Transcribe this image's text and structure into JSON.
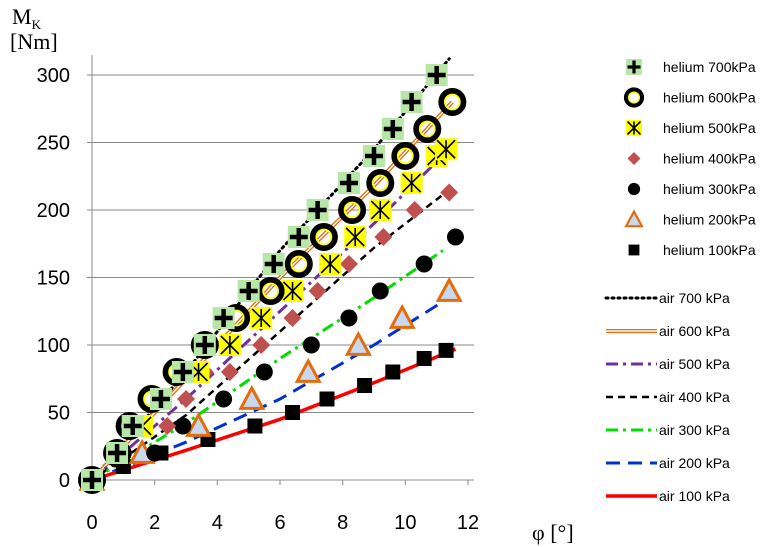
{
  "chart_data": {
    "type": "scatter",
    "y_label_main": "M",
    "y_label_sub": "K",
    "y_label_unit": "[Nm]",
    "x_label": "φ [°]",
    "x_ticks": [
      0,
      2,
      4,
      6,
      8,
      10,
      12
    ],
    "y_ticks": [
      0,
      50,
      100,
      150,
      200,
      250,
      300
    ],
    "xlim": [
      0,
      12
    ],
    "ylim": [
      0,
      320
    ],
    "grid": "horizontal",
    "legend_placement": "right",
    "series": [
      {
        "name": "helium 700kPa",
        "kind": "marker",
        "marker": "plus",
        "color": "#000000",
        "bg": "#b7e7a7",
        "points": [
          [
            0,
            0
          ],
          [
            0.8,
            20
          ],
          [
            1.3,
            40
          ],
          [
            2.2,
            60
          ],
          [
            2.9,
            80
          ],
          [
            3.6,
            100
          ],
          [
            4.2,
            120
          ],
          [
            5.0,
            140
          ],
          [
            5.8,
            160
          ],
          [
            6.6,
            180
          ],
          [
            7.2,
            200
          ],
          [
            8.2,
            220
          ],
          [
            9.0,
            240
          ],
          [
            9.6,
            260
          ],
          [
            10.2,
            280
          ],
          [
            11.0,
            300
          ]
        ]
      },
      {
        "name": "helium 600kPa",
        "kind": "marker",
        "marker": "ring",
        "color": "#000000",
        "fill": "#ffff00",
        "points": [
          [
            0,
            0
          ],
          [
            0.8,
            20
          ],
          [
            1.2,
            40
          ],
          [
            1.9,
            60
          ],
          [
            2.7,
            80
          ],
          [
            3.6,
            100
          ],
          [
            4.6,
            120
          ],
          [
            5.7,
            140
          ],
          [
            6.6,
            160
          ],
          [
            7.4,
            180
          ],
          [
            8.3,
            200
          ],
          [
            9.2,
            220
          ],
          [
            10.0,
            240
          ],
          [
            10.7,
            260
          ],
          [
            11.5,
            280
          ]
        ]
      },
      {
        "name": "helium 500kPa",
        "kind": "marker",
        "marker": "asterisk-box",
        "color": "#000000",
        "fill": "#ffff00",
        "points": [
          [
            1.6,
            40
          ],
          [
            3.4,
            80
          ],
          [
            4.4,
            100
          ],
          [
            5.4,
            120
          ],
          [
            6.4,
            140
          ],
          [
            7.6,
            160
          ],
          [
            8.4,
            180
          ],
          [
            9.2,
            200
          ],
          [
            10.2,
            220
          ],
          [
            11.0,
            240
          ],
          [
            11.3,
            245
          ]
        ]
      },
      {
        "name": "helium 400kPa",
        "kind": "marker",
        "marker": "diamond",
        "color": "#c0504d",
        "points": [
          [
            2.4,
            40
          ],
          [
            3.0,
            60
          ],
          [
            3.6,
            80
          ],
          [
            4.4,
            80
          ],
          [
            5.4,
            100
          ],
          [
            6.4,
            120
          ],
          [
            7.2,
            140
          ],
          [
            8.2,
            160
          ],
          [
            9.3,
            180
          ],
          [
            10.3,
            200
          ],
          [
            11.4,
            213
          ]
        ]
      },
      {
        "name": "helium 300kPa",
        "kind": "marker",
        "marker": "circle",
        "color": "#000000",
        "points": [
          [
            0,
            0
          ],
          [
            1.0,
            20
          ],
          [
            2.0,
            20
          ],
          [
            2.9,
            40
          ],
          [
            4.2,
            60
          ],
          [
            5.5,
            80
          ],
          [
            7.0,
            100
          ],
          [
            8.2,
            120
          ],
          [
            9.2,
            140
          ],
          [
            10.6,
            160
          ],
          [
            11.6,
            180
          ]
        ]
      },
      {
        "name": "helium 200kPa",
        "kind": "marker",
        "marker": "triangle",
        "color": "#e46c0a",
        "fill": "#c6d9f1",
        "points": [
          [
            0,
            0
          ],
          [
            1.6,
            20
          ],
          [
            3.4,
            40
          ],
          [
            5.1,
            60
          ],
          [
            6.9,
            80
          ],
          [
            8.5,
            100
          ],
          [
            9.9,
            120
          ],
          [
            11.4,
            140
          ]
        ]
      },
      {
        "name": "helium 100kPa",
        "kind": "marker",
        "marker": "square",
        "color": "#000000",
        "points": [
          [
            0,
            0
          ],
          [
            1.0,
            10
          ],
          [
            2.2,
            20
          ],
          [
            3.7,
            30
          ],
          [
            5.2,
            40
          ],
          [
            6.4,
            50
          ],
          [
            7.5,
            60
          ],
          [
            8.7,
            70
          ],
          [
            9.6,
            80
          ],
          [
            10.6,
            90
          ],
          [
            11.3,
            96
          ]
        ]
      },
      {
        "name": "air 700 kPa",
        "kind": "line",
        "style": "dotted",
        "color": "#000000",
        "points": [
          [
            0,
            0
          ],
          [
            3.0,
            80
          ],
          [
            6.0,
            170
          ],
          [
            9.0,
            245
          ],
          [
            11.4,
            312
          ]
        ]
      },
      {
        "name": "air 600 kPa",
        "kind": "line",
        "style": "double",
        "color": "#e46c0a",
        "points": [
          [
            0,
            0
          ],
          [
            3.0,
            75
          ],
          [
            6.0,
            150
          ],
          [
            9.0,
            218
          ],
          [
            11.5,
            280
          ]
        ]
      },
      {
        "name": "air 500 kPa",
        "kind": "line",
        "style": "dashdot",
        "color": "#7030a0",
        "points": [
          [
            0,
            0
          ],
          [
            3.0,
            60
          ],
          [
            6.0,
            125
          ],
          [
            9.0,
            190
          ],
          [
            11.4,
            245
          ]
        ]
      },
      {
        "name": "air 400 kPa",
        "kind": "line",
        "style": "dashed",
        "color": "#000000",
        "points": [
          [
            0,
            0
          ],
          [
            3.0,
            48
          ],
          [
            6.0,
            110
          ],
          [
            9.0,
            172
          ],
          [
            11.4,
            215
          ]
        ]
      },
      {
        "name": "air 300 kPa",
        "kind": "line",
        "style": "dashdot",
        "color": "#00dd00",
        "points": [
          [
            0,
            0
          ],
          [
            3.0,
            42
          ],
          [
            6.0,
            90
          ],
          [
            9.0,
            135
          ],
          [
            11.2,
            170
          ]
        ]
      },
      {
        "name": "air 200 kPa",
        "kind": "line",
        "style": "longdash",
        "color": "#0033cc",
        "points": [
          [
            0,
            0
          ],
          [
            3.0,
            28
          ],
          [
            6.0,
            60
          ],
          [
            9.0,
            100
          ],
          [
            11.6,
            138
          ]
        ]
      },
      {
        "name": "air 100 kPa",
        "kind": "line",
        "style": "solid",
        "color": "#ff0000",
        "points": [
          [
            0,
            0
          ],
          [
            3.0,
            22
          ],
          [
            6.0,
            45
          ],
          [
            9.0,
            72
          ],
          [
            11.6,
            97
          ]
        ]
      }
    ]
  }
}
